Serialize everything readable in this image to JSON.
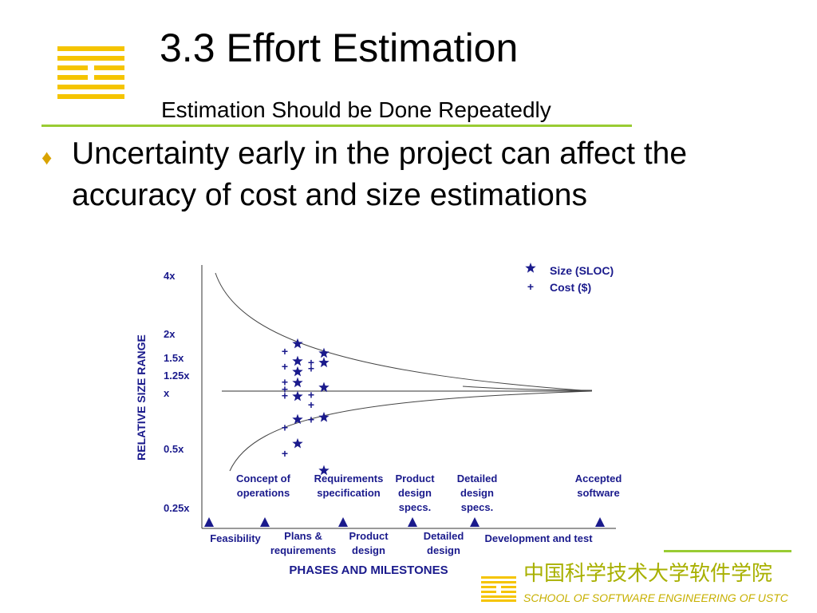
{
  "slide": {
    "title": "3.3 Effort Estimation",
    "subtitle": "Estimation Should be Done Repeatedly",
    "bullet_icon": "diamond-bullet-icon",
    "bullet_text": "Uncertainty early in the project can affect the accuracy of cost and size estimations",
    "logo_icon": "school-logo-icon"
  },
  "footer": {
    "chinese_name": "中国科学技术大学软件学院",
    "english_name": "SCHOOL OF SOFTWARE ENGINEERING OF USTC"
  },
  "colors": {
    "accent_green": "#99cc33",
    "logo_yellow": "#f5c400",
    "chart_text": "#1a1a8c"
  },
  "chart_data": {
    "type": "scatter",
    "ylabel": "RELATIVE SIZE RANGE",
    "xlabel": "PHASES AND MILESTONES",
    "y_ticks": [
      "4x",
      "2x",
      "1.5x",
      "1.25x",
      "x",
      "0.5x",
      "0.25x"
    ],
    "legend": {
      "placement": "top-right",
      "entries": [
        {
          "marker": "star",
          "label": "Size (SLOC)"
        },
        {
          "marker": "plus",
          "label": "Cost ($)"
        }
      ]
    },
    "milestones": [
      "Feasibility",
      "Concept of operations",
      "Plans & requirements",
      "Requirements specification",
      "Product design",
      "Product design specs.",
      "Detailed design",
      "Detailed design specs.",
      "Development and test",
      "Accepted software"
    ],
    "phase_labels": [
      "Feasibility",
      "Plans & requirements",
      "Product design",
      "Detailed design",
      "Development and test"
    ],
    "milestone_labels": [
      "Concept of operations",
      "Requirements specification",
      "Product design specs.",
      "Detailed design specs.",
      "Accepted software"
    ],
    "envelope": {
      "upper": [
        {
          "milestone": "Feasibility",
          "y": 4
        },
        {
          "milestone": "Accepted software",
          "y": 1
        }
      ],
      "lower": [
        {
          "milestone": "Feasibility",
          "y": 0.25
        },
        {
          "milestone": "Accepted software",
          "y": 1
        }
      ]
    },
    "size_points": [
      {
        "milestone": "Concept of operations",
        "y": 1.9
      },
      {
        "milestone": "Concept of operations",
        "y": 1.5
      },
      {
        "milestone": "Concept of operations",
        "y": 1.3
      },
      {
        "milestone": "Concept of operations",
        "y": 1.12
      },
      {
        "milestone": "Concept of operations",
        "y": 0.93
      },
      {
        "milestone": "Concept of operations",
        "y": 0.68
      },
      {
        "milestone": "Concept of operations",
        "y": 0.49
      },
      {
        "milestone": "Requirements specification",
        "y": 1.67
      },
      {
        "milestone": "Requirements specification",
        "y": 1.47
      },
      {
        "milestone": "Requirements specification",
        "y": 1.05
      },
      {
        "milestone": "Requirements specification",
        "y": 0.7
      },
      {
        "milestone": "Requirements specification",
        "y": 0.34
      }
    ],
    "cost_points": [
      {
        "milestone": "Concept of operations",
        "y": 1.72
      },
      {
        "milestone": "Concept of operations",
        "y": 1.4
      },
      {
        "milestone": "Concept of operations",
        "y": 1.13
      },
      {
        "milestone": "Concept of operations",
        "y": 1.03
      },
      {
        "milestone": "Concept of operations",
        "y": 0.94
      },
      {
        "milestone": "Concept of operations",
        "y": 0.61
      },
      {
        "milestone": "Concept of operations",
        "y": 0.43
      },
      {
        "milestone": "Requirements specification",
        "y": 1.48
      },
      {
        "milestone": "Requirements specification",
        "y": 1.36
      },
      {
        "milestone": "Requirements specification",
        "y": 0.95
      },
      {
        "milestone": "Requirements specification",
        "y": 0.83
      },
      {
        "milestone": "Requirements specification",
        "y": 0.68
      }
    ]
  }
}
